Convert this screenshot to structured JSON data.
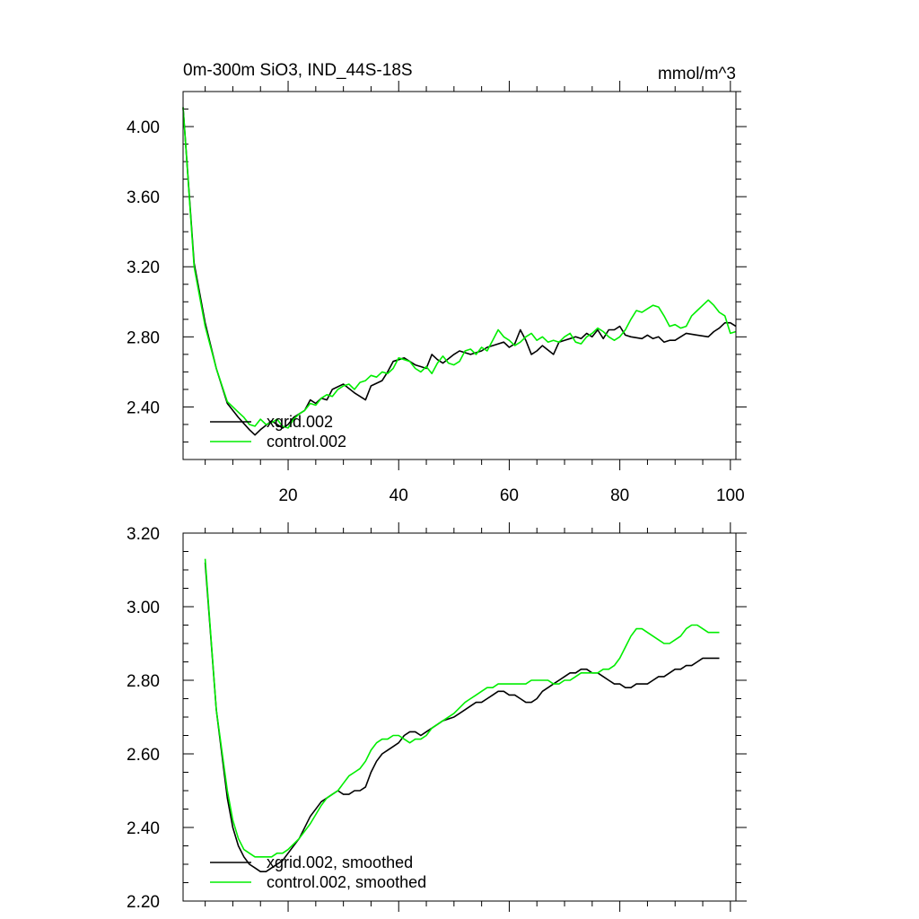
{
  "chart_data": [
    {
      "type": "line",
      "title": "0m-300m SiO3, IND_44S-18S",
      "units": "mmol/m^3",
      "xlim": [
        1,
        101
      ],
      "ylim": [
        2.1,
        4.2
      ],
      "xticks": [
        20,
        40,
        60,
        80,
        100
      ],
      "yticks": [
        2.4,
        2.8,
        3.2,
        3.6,
        4.0
      ],
      "ytick_labels": [
        "2.40",
        "2.80",
        "3.20",
        "3.60",
        "4.00"
      ],
      "xtick_labels": [
        "20",
        "40",
        "60",
        "80",
        "100"
      ],
      "series": [
        {
          "name": "xgrid.002",
          "color": "#000000",
          "x": [
            1,
            3,
            5,
            7,
            9,
            11,
            13,
            14,
            15,
            17,
            19,
            20,
            21,
            23,
            24,
            25,
            26,
            27,
            28,
            30,
            32,
            34,
            35,
            37,
            38,
            39,
            41,
            43,
            44,
            45,
            46,
            47,
            48,
            50,
            51,
            53,
            55,
            56,
            57,
            59,
            60,
            61,
            62,
            63,
            64,
            65,
            66,
            68,
            69,
            70,
            71,
            72,
            73,
            74,
            75,
            76,
            77,
            78,
            79,
            80,
            81,
            82,
            84,
            85,
            86,
            87,
            88,
            89,
            90,
            92,
            94,
            96,
            97,
            98,
            99,
            100,
            101
          ],
          "values": [
            4.11,
            3.22,
            2.88,
            2.62,
            2.42,
            2.34,
            2.27,
            2.24,
            2.27,
            2.32,
            2.28,
            2.3,
            2.34,
            2.38,
            2.44,
            2.42,
            2.45,
            2.44,
            2.5,
            2.53,
            2.48,
            2.44,
            2.52,
            2.55,
            2.6,
            2.66,
            2.68,
            2.64,
            2.63,
            2.62,
            2.7,
            2.67,
            2.65,
            2.7,
            2.72,
            2.7,
            2.72,
            2.74,
            2.75,
            2.77,
            2.74,
            2.76,
            2.84,
            2.78,
            2.7,
            2.72,
            2.75,
            2.7,
            2.77,
            2.78,
            2.79,
            2.8,
            2.79,
            2.82,
            2.8,
            2.84,
            2.79,
            2.84,
            2.84,
            2.86,
            2.81,
            2.8,
            2.79,
            2.81,
            2.79,
            2.8,
            2.77,
            2.78,
            2.78,
            2.82,
            2.81,
            2.8,
            2.83,
            2.85,
            2.88,
            2.88,
            2.86
          ]
        },
        {
          "name": "control.002",
          "color": "#00ee00",
          "x": [
            1,
            3,
            5,
            7,
            9,
            11,
            12,
            13,
            14,
            15,
            16,
            17,
            18,
            19,
            20,
            21,
            22,
            23,
            24,
            25,
            26,
            27,
            28,
            29,
            30,
            31,
            32,
            33,
            34,
            35,
            36,
            37,
            38,
            39,
            40,
            41,
            42,
            43,
            44,
            45,
            46,
            47,
            48,
            49,
            50,
            51,
            52,
            53,
            54,
            55,
            56,
            57,
            58,
            59,
            60,
            61,
            62,
            63,
            64,
            65,
            66,
            67,
            68,
            69,
            70,
            71,
            72,
            73,
            74,
            75,
            76,
            77,
            78,
            79,
            80,
            81,
            82,
            83,
            84,
            85,
            86,
            87,
            88,
            89,
            90,
            91,
            92,
            93,
            94,
            95,
            96,
            97,
            98,
            99,
            100,
            101
          ],
          "values": [
            4.11,
            3.2,
            2.86,
            2.62,
            2.43,
            2.37,
            2.34,
            2.3,
            2.29,
            2.33,
            2.3,
            2.31,
            2.33,
            2.29,
            2.28,
            2.33,
            2.36,
            2.38,
            2.42,
            2.41,
            2.45,
            2.47,
            2.46,
            2.5,
            2.52,
            2.53,
            2.5,
            2.54,
            2.55,
            2.58,
            2.57,
            2.6,
            2.59,
            2.62,
            2.68,
            2.67,
            2.66,
            2.62,
            2.6,
            2.63,
            2.59,
            2.65,
            2.69,
            2.65,
            2.64,
            2.66,
            2.72,
            2.73,
            2.7,
            2.74,
            2.72,
            2.78,
            2.84,
            2.8,
            2.78,
            2.75,
            2.77,
            2.8,
            2.82,
            2.78,
            2.8,
            2.77,
            2.78,
            2.77,
            2.8,
            2.82,
            2.77,
            2.76,
            2.8,
            2.82,
            2.85,
            2.83,
            2.8,
            2.78,
            2.8,
            2.84,
            2.9,
            2.95,
            2.94,
            2.96,
            2.98,
            2.97,
            2.92,
            2.86,
            2.87,
            2.85,
            2.86,
            2.92,
            2.95,
            2.98,
            3.01,
            2.98,
            2.94,
            2.92,
            2.82,
            2.83
          ]
        }
      ]
    },
    {
      "type": "line",
      "xlim": [
        1,
        101
      ],
      "ylim": [
        2.2,
        3.2
      ],
      "xticks": [
        20,
        40,
        60,
        80,
        100
      ],
      "yticks": [
        2.2,
        2.4,
        2.6,
        2.8,
        3.0,
        3.2
      ],
      "ytick_labels": [
        "2.20",
        "2.40",
        "2.60",
        "2.80",
        "3.00",
        "3.20"
      ],
      "series": [
        {
          "name": "xgrid.002, smoothed",
          "color": "#000000",
          "x": [
            5,
            7,
            9,
            10,
            11,
            12,
            13,
            14,
            15,
            16,
            17,
            18,
            19,
            20,
            22,
            24,
            26,
            27,
            28,
            29,
            30,
            31,
            32,
            33,
            34,
            35,
            36,
            37,
            38,
            39,
            40,
            41,
            42,
            43,
            44,
            45,
            46,
            47,
            48,
            50,
            52,
            53,
            54,
            55,
            56,
            57,
            58,
            59,
            60,
            61,
            62,
            63,
            64,
            65,
            66,
            67,
            68,
            69,
            70,
            71,
            72,
            73,
            74,
            75,
            76,
            77,
            78,
            79,
            80,
            81,
            82,
            83,
            84,
            85,
            86,
            87,
            88,
            89,
            90,
            91,
            92,
            93,
            94,
            95,
            96,
            97,
            98
          ],
          "values": [
            3.12,
            2.72,
            2.48,
            2.4,
            2.35,
            2.32,
            2.3,
            2.29,
            2.28,
            2.28,
            2.29,
            2.3,
            2.31,
            2.33,
            2.37,
            2.43,
            2.47,
            2.48,
            2.49,
            2.5,
            2.49,
            2.49,
            2.5,
            2.5,
            2.51,
            2.55,
            2.58,
            2.6,
            2.61,
            2.62,
            2.63,
            2.65,
            2.66,
            2.66,
            2.65,
            2.66,
            2.67,
            2.68,
            2.69,
            2.7,
            2.72,
            2.73,
            2.74,
            2.74,
            2.75,
            2.76,
            2.77,
            2.77,
            2.76,
            2.76,
            2.75,
            2.74,
            2.74,
            2.75,
            2.77,
            2.78,
            2.79,
            2.8,
            2.81,
            2.82,
            2.82,
            2.83,
            2.83,
            2.82,
            2.82,
            2.81,
            2.8,
            2.79,
            2.79,
            2.78,
            2.78,
            2.79,
            2.79,
            2.79,
            2.8,
            2.81,
            2.81,
            2.82,
            2.83,
            2.83,
            2.84,
            2.84,
            2.85,
            2.86,
            2.86,
            2.86,
            2.86
          ]
        },
        {
          "name": "control.002, smoothed",
          "color": "#00ee00",
          "x": [
            5,
            7,
            9,
            10,
            11,
            12,
            13,
            14,
            15,
            16,
            17,
            18,
            19,
            20,
            22,
            24,
            26,
            27,
            28,
            29,
            30,
            31,
            32,
            33,
            34,
            35,
            36,
            37,
            38,
            39,
            40,
            41,
            42,
            43,
            44,
            45,
            46,
            47,
            48,
            50,
            52,
            53,
            54,
            55,
            56,
            57,
            58,
            59,
            60,
            61,
            62,
            63,
            64,
            65,
            66,
            67,
            68,
            69,
            70,
            71,
            72,
            73,
            74,
            75,
            76,
            77,
            78,
            79,
            80,
            81,
            82,
            83,
            84,
            85,
            86,
            87,
            88,
            89,
            90,
            91,
            92,
            93,
            94,
            95,
            96,
            97,
            98
          ],
          "values": [
            3.13,
            2.72,
            2.5,
            2.42,
            2.37,
            2.34,
            2.33,
            2.32,
            2.32,
            2.32,
            2.32,
            2.33,
            2.33,
            2.34,
            2.37,
            2.41,
            2.46,
            2.48,
            2.49,
            2.5,
            2.52,
            2.54,
            2.55,
            2.56,
            2.58,
            2.61,
            2.63,
            2.64,
            2.64,
            2.65,
            2.65,
            2.64,
            2.63,
            2.64,
            2.64,
            2.65,
            2.67,
            2.68,
            2.69,
            2.71,
            2.74,
            2.75,
            2.76,
            2.77,
            2.78,
            2.78,
            2.79,
            2.79,
            2.79,
            2.79,
            2.79,
            2.79,
            2.8,
            2.8,
            2.8,
            2.8,
            2.79,
            2.79,
            2.8,
            2.8,
            2.81,
            2.82,
            2.82,
            2.82,
            2.82,
            2.83,
            2.83,
            2.84,
            2.86,
            2.89,
            2.92,
            2.94,
            2.94,
            2.93,
            2.92,
            2.91,
            2.9,
            2.9,
            2.91,
            2.92,
            2.94,
            2.95,
            2.95,
            2.94,
            2.93,
            2.93,
            2.93
          ]
        }
      ]
    }
  ]
}
